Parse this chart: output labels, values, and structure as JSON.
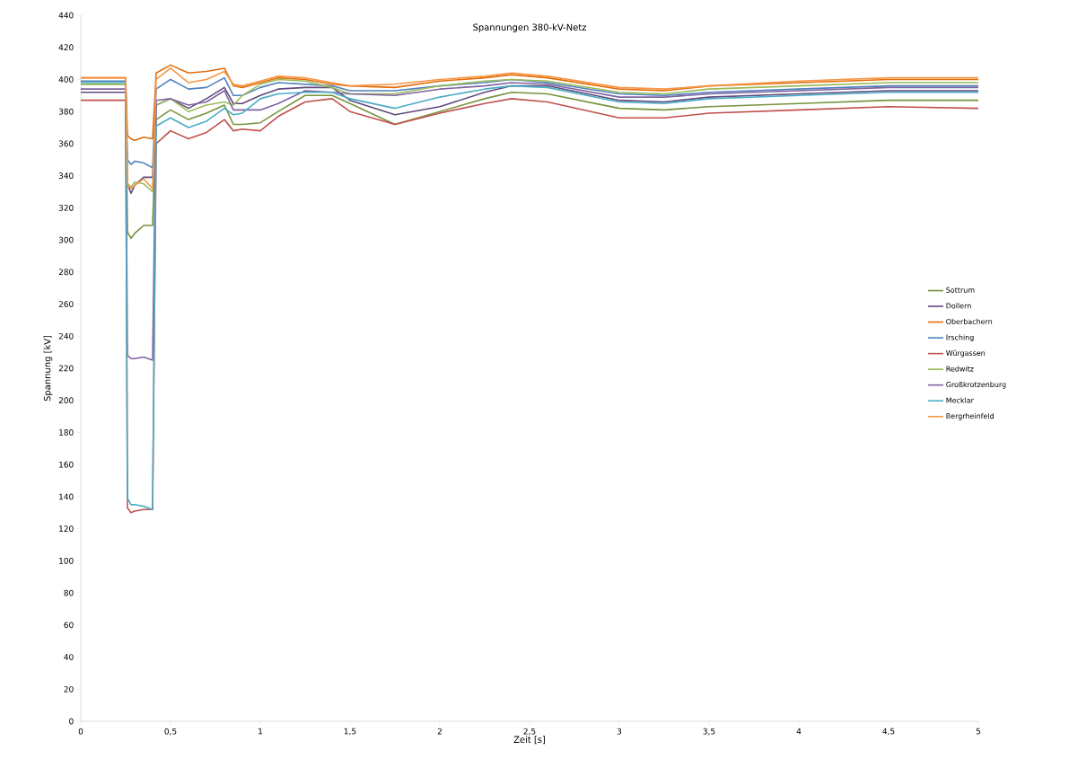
{
  "chart_data": {
    "type": "line",
    "title": "Spannungen 380-kV-Netz",
    "xlabel": "Zeit [s]",
    "ylabel": "Spannung [kV]",
    "xlim": [
      0,
      5
    ],
    "ylim": [
      0,
      440
    ],
    "xticks": [
      0,
      {
        "value": 0.5,
        "label": "0,5"
      },
      1,
      {
        "value": 1.5,
        "label": "1,5"
      },
      2,
      {
        "value": 2.5,
        "label": "2,5"
      },
      3,
      {
        "value": 3.5,
        "label": "3,5"
      },
      4,
      {
        "value": 4.5,
        "label": "4,5"
      },
      5
    ],
    "yticks": [
      0,
      20,
      40,
      60,
      80,
      100,
      120,
      140,
      160,
      180,
      200,
      220,
      240,
      260,
      280,
      300,
      320,
      340,
      360,
      380,
      400,
      420,
      440
    ],
    "grid": false,
    "legend": "right",
    "marker": "none",
    "line_style": "solid",
    "x": [
      0,
      0.25,
      0.26,
      0.28,
      0.3,
      0.35,
      0.4,
      0.42,
      0.5,
      0.6,
      0.7,
      0.8,
      0.85,
      0.9,
      1.0,
      1.1,
      1.25,
      1.4,
      1.5,
      1.75,
      2.0,
      2.25,
      2.4,
      2.6,
      3.0,
      3.25,
      3.5,
      4.0,
      4.5,
      5.0
    ],
    "series": [
      {
        "name": "Sottrum",
        "color": "#77933c",
        "values": [
          397,
          397,
          305,
          301,
          304,
          309,
          309,
          375,
          381,
          375,
          379,
          384,
          372,
          372,
          373,
          380,
          390,
          390,
          385,
          372,
          380,
          388,
          392,
          391,
          382,
          381,
          383,
          385,
          387,
          387
        ]
      },
      {
        "name": "Dollern",
        "color": "#604a7b",
        "values": [
          392,
          392,
          335,
          329,
          334,
          339,
          339,
          384,
          388,
          382,
          388,
          395,
          385,
          385,
          390,
          394,
          395,
          395,
          387,
          378,
          383,
          392,
          396,
          396,
          387,
          386,
          389,
          391,
          393,
          393
        ]
      },
      {
        "name": "Oberbachern",
        "color": "#e46c0a",
        "values": [
          401,
          401,
          365,
          363,
          362,
          364,
          363,
          404,
          409,
          404,
          405,
          407,
          396,
          395,
          398,
          401,
          400,
          397,
          396,
          395,
          399,
          401,
          403,
          401,
          394,
          393,
          396,
          398,
          400,
          400
        ]
      },
      {
        "name": "Irsching",
        "color": "#4f81bd",
        "values": [
          399,
          399,
          350,
          347,
          349,
          348,
          345,
          394,
          400,
          394,
          395,
          401,
          390,
          390,
          395,
          398,
          397,
          396,
          393,
          393,
          396,
          398,
          400,
          398,
          391,
          390,
          392,
          394,
          396,
          396
        ]
      },
      {
        "name": "Würgassen",
        "color": "#c0504d",
        "values": [
          387,
          387,
          133,
          130,
          131,
          132,
          132,
          360,
          368,
          363,
          367,
          375,
          368,
          369,
          368,
          377,
          386,
          388,
          380,
          372,
          379,
          385,
          388,
          386,
          376,
          376,
          379,
          381,
          383,
          382
        ]
      },
      {
        "name": "Redwitz",
        "color": "#9bbb59",
        "values": [
          397,
          397,
          335,
          333,
          336,
          335,
          330,
          384,
          388,
          380,
          384,
          386,
          384,
          390,
          397,
          400,
          399,
          395,
          391,
          391,
          396,
          399,
          400,
          399,
          392,
          391,
          394,
          396,
          398,
          398
        ]
      },
      {
        "name": "Großkrotzenburg",
        "color": "#8064a2",
        "values": [
          394,
          394,
          228,
          226,
          226,
          227,
          225,
          387,
          388,
          384,
          386,
          393,
          381,
          381,
          381,
          385,
          393,
          392,
          391,
          390,
          394,
          396,
          398,
          397,
          389,
          389,
          391,
          393,
          395,
          395
        ]
      },
      {
        "name": "Mecklar",
        "color": "#4bacc6",
        "values": [
          398,
          398,
          139,
          135,
          135,
          134,
          132,
          371,
          376,
          370,
          374,
          382,
          378,
          379,
          388,
          391,
          392,
          392,
          388,
          382,
          389,
          394,
          396,
          395,
          386,
          385,
          388,
          390,
          392,
          392
        ]
      },
      {
        "name": "Bergrheinfeld",
        "color": "#f79646",
        "values": [
          401,
          401,
          334,
          332,
          334,
          338,
          332,
          400,
          407,
          398,
          400,
          405,
          397,
          396,
          399,
          402,
          401,
          398,
          396,
          397,
          400,
          402,
          404,
          402,
          395,
          394,
          396,
          399,
          401,
          401
        ]
      }
    ]
  }
}
